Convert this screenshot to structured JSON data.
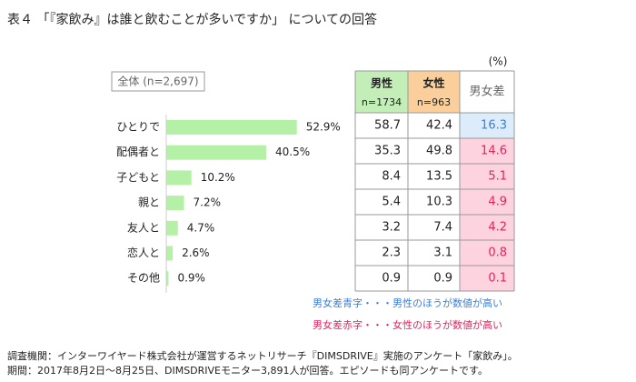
{
  "title": "表４ 「『家飲み』は誰と飲むことが多いですか」 についての回答",
  "chart_data": {
    "type": "bar",
    "orientation": "horizontal",
    "subtitle": "全体 (n=2,697)",
    "categories": [
      "ひとりで",
      "配偶者と",
      "子どもと",
      "親と",
      "友人と",
      "恋人と",
      "その他"
    ],
    "values": [
      52.9,
      40.5,
      10.2,
      7.2,
      4.7,
      2.6,
      0.9
    ],
    "value_labels": [
      "52.9%",
      "40.5%",
      "10.2%",
      "7.2%",
      "4.7%",
      "2.6%",
      "0.9%"
    ],
    "color": "#b4f0a6",
    "xlim": [
      0,
      60
    ]
  },
  "table": {
    "unit": "(%)",
    "columns": [
      {
        "name": "男性",
        "n": "n=1734",
        "color": "#c4eeb8"
      },
      {
        "name": "女性",
        "n": "n=963",
        "color": "#fbcf9b"
      },
      {
        "name": "男女差",
        "color": "#ffffff"
      }
    ],
    "rows": [
      [
        58.7,
        42.4,
        16.3
      ],
      [
        35.3,
        49.8,
        14.6
      ],
      [
        8.4,
        13.5,
        5.1
      ],
      [
        5.4,
        10.3,
        4.9
      ],
      [
        3.2,
        7.4,
        4.2
      ],
      [
        2.3,
        3.1,
        0.8
      ],
      [
        0.9,
        0.9,
        0.1
      ]
    ]
  },
  "notes": [
    {
      "text": "男女差青字・・・男性のほうが数値が高い",
      "color": "#3c7fd8",
      "background": "#dcecfb"
    },
    {
      "text": "男女差赤字・・・女性のほうが数値が高い",
      "color": "#e0245e",
      "background": "#fdd3e0"
    }
  ],
  "footer": [
    "調査機関：インターワイヤード株式会社が運営するネットリサーチ『DIMSDRIVE』実施のアンケート「家飲み」。",
    "期間：2017年8月2日～8月25日、DIMSDRIVEモニター3,891人が回答。エピソードも同アンケートです。"
  ]
}
